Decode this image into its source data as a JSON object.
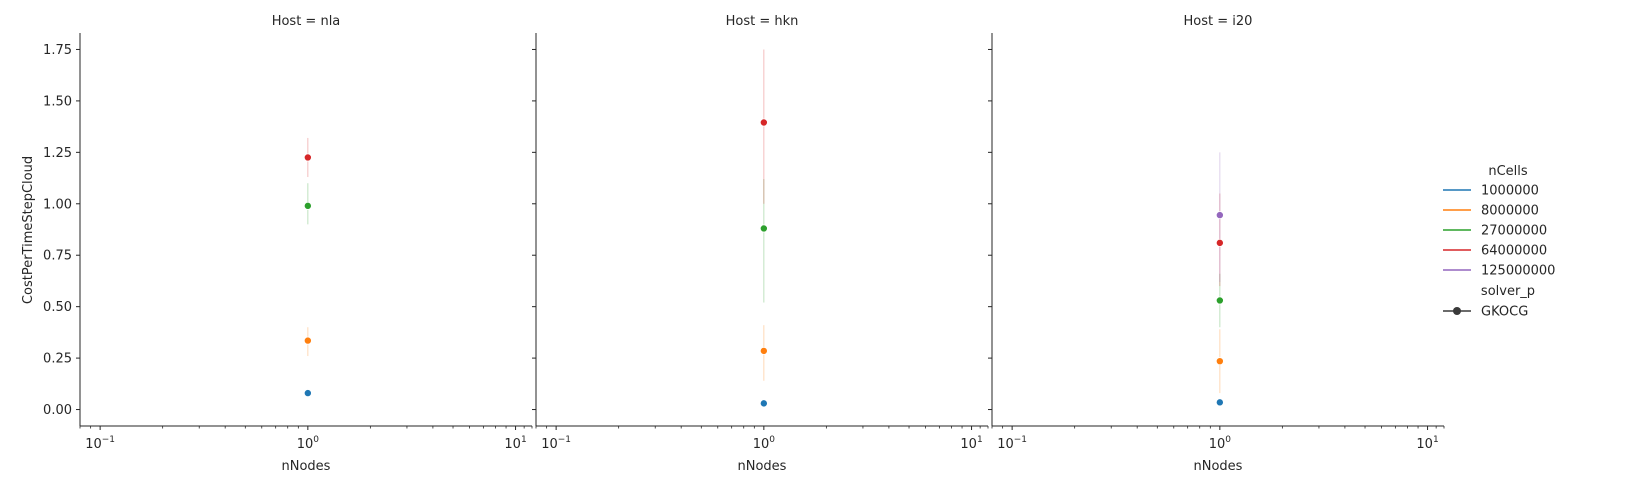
{
  "chart_data": {
    "type": "scatter",
    "xlabel": "nNodes",
    "ylabel": "CostPerTimeStepCloud",
    "xscale": "log",
    "xlim": [
      0.08,
      12
    ],
    "ylim": [
      -0.08,
      1.83
    ],
    "x_ticks": [
      {
        "value": 0.1,
        "base": "10",
        "exp": "−1"
      },
      {
        "value": 1,
        "base": "10",
        "exp": "0"
      },
      {
        "value": 10,
        "base": "10",
        "exp": "1"
      }
    ],
    "y_ticks": [
      "0.00",
      "0.25",
      "0.50",
      "0.75",
      "1.00",
      "1.25",
      "1.50",
      "1.75"
    ],
    "legend": {
      "placement": "right",
      "hue_title": "nCells",
      "style_title": "solver_p",
      "style_entries": [
        "GKOCG"
      ]
    },
    "series": [
      {
        "name": "1000000",
        "color": "#1f77b4"
      },
      {
        "name": "8000000",
        "color": "#ff7f0e"
      },
      {
        "name": "27000000",
        "color": "#2ca02c"
      },
      {
        "name": "64000000",
        "color": "#d62728"
      },
      {
        "name": "125000000",
        "color": "#9467bd"
      }
    ],
    "panels": [
      {
        "title": "Host = nla",
        "points": [
          {
            "series": 0,
            "x": 1,
            "y": 0.08,
            "ci": [
              0.07,
              0.09
            ]
          },
          {
            "series": 1,
            "x": 1,
            "y": 0.335,
            "ci": [
              0.26,
              0.4
            ]
          },
          {
            "series": 2,
            "x": 1,
            "y": 0.99,
            "ci": [
              0.9,
              1.1
            ]
          },
          {
            "series": 3,
            "x": 1,
            "y": 1.225,
            "ci": [
              1.13,
              1.32
            ]
          }
        ]
      },
      {
        "title": "Host = hkn",
        "points": [
          {
            "series": 0,
            "x": 1,
            "y": 0.03,
            "ci": [
              0.02,
              0.04
            ]
          },
          {
            "series": 1,
            "x": 1,
            "y": 0.285,
            "ci": [
              0.14,
              0.41
            ]
          },
          {
            "series": 2,
            "x": 1,
            "y": 0.88,
            "ci": [
              0.52,
              1.12
            ]
          },
          {
            "series": 3,
            "x": 1,
            "y": 1.395,
            "ci": [
              1.0,
              1.75
            ]
          }
        ]
      },
      {
        "title": "Host = i20",
        "points": [
          {
            "series": 0,
            "x": 1,
            "y": 0.035,
            "ci": [
              0.03,
              0.04
            ]
          },
          {
            "series": 1,
            "x": 1,
            "y": 0.235,
            "ci": [
              0.08,
              0.39
            ]
          },
          {
            "series": 2,
            "x": 1,
            "y": 0.53,
            "ci": [
              0.4,
              0.66
            ]
          },
          {
            "series": 3,
            "x": 1,
            "y": 0.81,
            "ci": [
              0.6,
              1.05
            ]
          },
          {
            "series": 4,
            "x": 1,
            "y": 0.945,
            "ci": [
              0.62,
              1.25
            ]
          }
        ]
      }
    ]
  }
}
